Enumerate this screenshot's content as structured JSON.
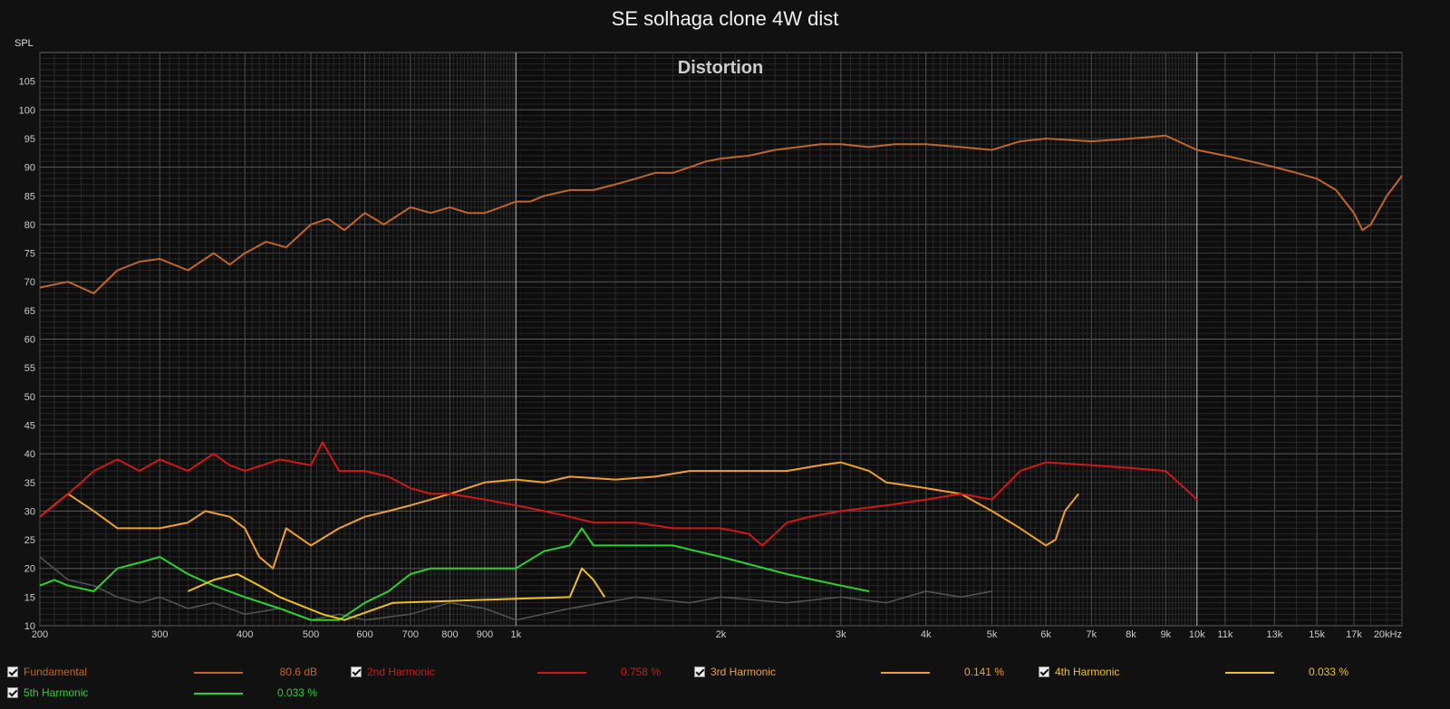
{
  "chart_data": {
    "type": "line",
    "title": "SE solhaga clone 4W dist",
    "subtitle": "Distortion",
    "ylabel": "SPL",
    "xlabel": "",
    "x_scale": "log",
    "xlim": [
      200,
      20000
    ],
    "ylim": [
      10,
      110
    ],
    "x_ticks": [
      {
        "value": 200,
        "label": "200"
      },
      {
        "value": 300,
        "label": "300"
      },
      {
        "value": 400,
        "label": "400"
      },
      {
        "value": 500,
        "label": "500"
      },
      {
        "value": 600,
        "label": "600"
      },
      {
        "value": 700,
        "label": "700"
      },
      {
        "value": 800,
        "label": "800"
      },
      {
        "value": 900,
        "label": "900"
      },
      {
        "value": 1000,
        "label": "1k"
      },
      {
        "value": 2000,
        "label": "2k"
      },
      {
        "value": 3000,
        "label": "3k"
      },
      {
        "value": 4000,
        "label": "4k"
      },
      {
        "value": 5000,
        "label": "5k"
      },
      {
        "value": 6000,
        "label": "6k"
      },
      {
        "value": 7000,
        "label": "7k"
      },
      {
        "value": 8000,
        "label": "8k"
      },
      {
        "value": 9000,
        "label": "9k"
      },
      {
        "value": 10000,
        "label": "10k"
      },
      {
        "value": 11000,
        "label": "11k"
      },
      {
        "value": 13000,
        "label": "13k"
      },
      {
        "value": 15000,
        "label": "15k"
      },
      {
        "value": 17000,
        "label": "17k"
      },
      {
        "value": 20000,
        "label": "20kHz"
      }
    ],
    "y_ticks": [
      10,
      15,
      20,
      25,
      30,
      35,
      40,
      45,
      50,
      55,
      60,
      65,
      70,
      75,
      80,
      85,
      90,
      95,
      100,
      105
    ],
    "grid": true,
    "legend_position": "bottom",
    "series": [
      {
        "name": "Fundamental",
        "color": "#c0662a",
        "legend_value": "80.6 dB",
        "x": [
          200,
          220,
          240,
          260,
          280,
          300,
          330,
          360,
          380,
          400,
          430,
          460,
          500,
          530,
          560,
          600,
          640,
          700,
          750,
          800,
          850,
          900,
          950,
          1000,
          1050,
          1100,
          1200,
          1300,
          1400,
          1500,
          1600,
          1700,
          1800,
          1900,
          2000,
          2200,
          2400,
          2600,
          2800,
          3000,
          3300,
          3600,
          4000,
          4500,
          5000,
          5500,
          6000,
          7000,
          8000,
          9000,
          10000,
          11000,
          12000,
          13000,
          14000,
          15000,
          16000,
          17000,
          17500,
          18000,
          19000,
          20000
        ],
        "y": [
          69,
          70,
          68,
          72,
          73.5,
          74,
          72,
          75,
          73,
          75,
          77,
          76,
          80,
          81,
          79,
          82,
          80,
          83,
          82,
          83,
          82,
          82,
          83,
          84,
          84,
          85,
          86,
          86,
          87,
          88,
          89,
          89,
          90,
          91,
          91.5,
          92,
          93,
          93.5,
          94,
          94,
          93.5,
          94,
          94,
          93.5,
          93,
          94.5,
          95,
          94.5,
          95,
          95.5,
          93,
          92,
          91,
          90,
          89,
          88,
          86,
          82,
          79,
          80,
          85,
          88.5
        ]
      },
      {
        "name": "2nd Harmonic",
        "color": "#d01818",
        "legend_value": "0.758 %",
        "x": [
          200,
          210,
          220,
          230,
          240,
          260,
          280,
          300,
          330,
          360,
          380,
          400,
          450,
          500,
          520,
          550,
          600,
          650,
          700,
          750,
          800,
          900,
          1000,
          1100,
          1200,
          1300,
          1500,
          1700,
          2000,
          2200,
          2300,
          2400,
          2500,
          2700,
          3000,
          3500,
          4000,
          4500,
          5000,
          5500,
          6000,
          7000,
          8000,
          9000,
          10000
        ],
        "y": [
          29,
          31,
          33,
          35,
          37,
          39,
          37,
          39,
          37,
          40,
          38,
          37,
          39,
          38,
          42,
          37,
          37,
          36,
          34,
          33,
          33,
          32,
          31,
          30,
          29,
          28,
          28,
          27,
          27,
          26,
          24,
          26,
          28,
          29,
          30,
          31,
          32,
          33,
          32,
          37,
          38.5,
          38,
          37.5,
          37,
          32
        ]
      },
      {
        "name": "3rd Harmonic",
        "color": "#f0a030",
        "legend_value": "0.141 %",
        "x": [
          200,
          220,
          240,
          260,
          280,
          300,
          330,
          350,
          380,
          400,
          420,
          440,
          460,
          500,
          550,
          600,
          650,
          700,
          750,
          800,
          900,
          1000,
          1100,
          1200,
          1400,
          1600,
          1800,
          2000,
          2500,
          2800,
          3000,
          3300,
          3500,
          4000,
          4500,
          5000,
          5500,
          6000,
          6200,
          6400,
          6700
        ],
        "y": [
          29,
          33,
          30,
          27,
          27,
          27,
          28,
          30,
          29,
          27,
          22,
          20,
          27,
          24,
          27,
          29,
          30,
          31,
          32,
          33,
          35,
          35.5,
          35,
          36,
          35.5,
          36,
          37,
          37,
          37,
          38,
          38.5,
          37,
          35,
          34,
          33,
          30,
          27,
          24,
          25,
          30,
          33
        ]
      },
      {
        "name": "4th Harmonic",
        "color": "#f0c020",
        "legend_value": "0.033 %",
        "x": [
          330,
          360,
          390,
          420,
          450,
          520,
          560,
          660,
          1200,
          1250,
          1300,
          1350
        ],
        "y": [
          16,
          18,
          19,
          17,
          15,
          12,
          11,
          14,
          15,
          20,
          18,
          15
        ]
      },
      {
        "name": "5th Harmonic",
        "color": "#30d030",
        "legend_value": "0.033 %",
        "x": [
          200,
          210,
          220,
          240,
          260,
          280,
          300,
          330,
          360,
          400,
          450,
          500,
          550,
          600,
          650,
          700,
          750,
          800,
          900,
          1000,
          1100,
          1200,
          1250,
          1300,
          1500,
          1700,
          2000,
          2500,
          3000,
          3300
        ],
        "y": [
          17,
          18,
          17,
          16,
          20,
          21,
          22,
          19,
          17,
          15,
          13,
          11,
          11,
          14,
          16,
          19,
          20,
          20,
          20,
          20,
          23,
          24,
          27,
          24,
          24,
          24,
          22,
          19,
          17,
          16
        ]
      },
      {
        "name": "",
        "color": "#555555",
        "legend_value": "",
        "x": [
          200,
          220,
          240,
          260,
          280,
          300,
          330,
          360,
          400,
          450,
          500,
          550,
          600,
          700,
          800,
          900,
          1000,
          1200,
          1500,
          1800,
          2000,
          2500,
          3000,
          3500,
          4000,
          4500,
          5000
        ],
        "y": [
          22,
          18,
          17,
          15,
          14,
          15,
          13,
          14,
          12,
          13,
          11,
          12,
          11,
          12,
          14,
          13,
          11,
          13,
          15,
          14,
          15,
          14,
          15,
          14,
          16,
          15,
          16
        ]
      }
    ]
  }
}
